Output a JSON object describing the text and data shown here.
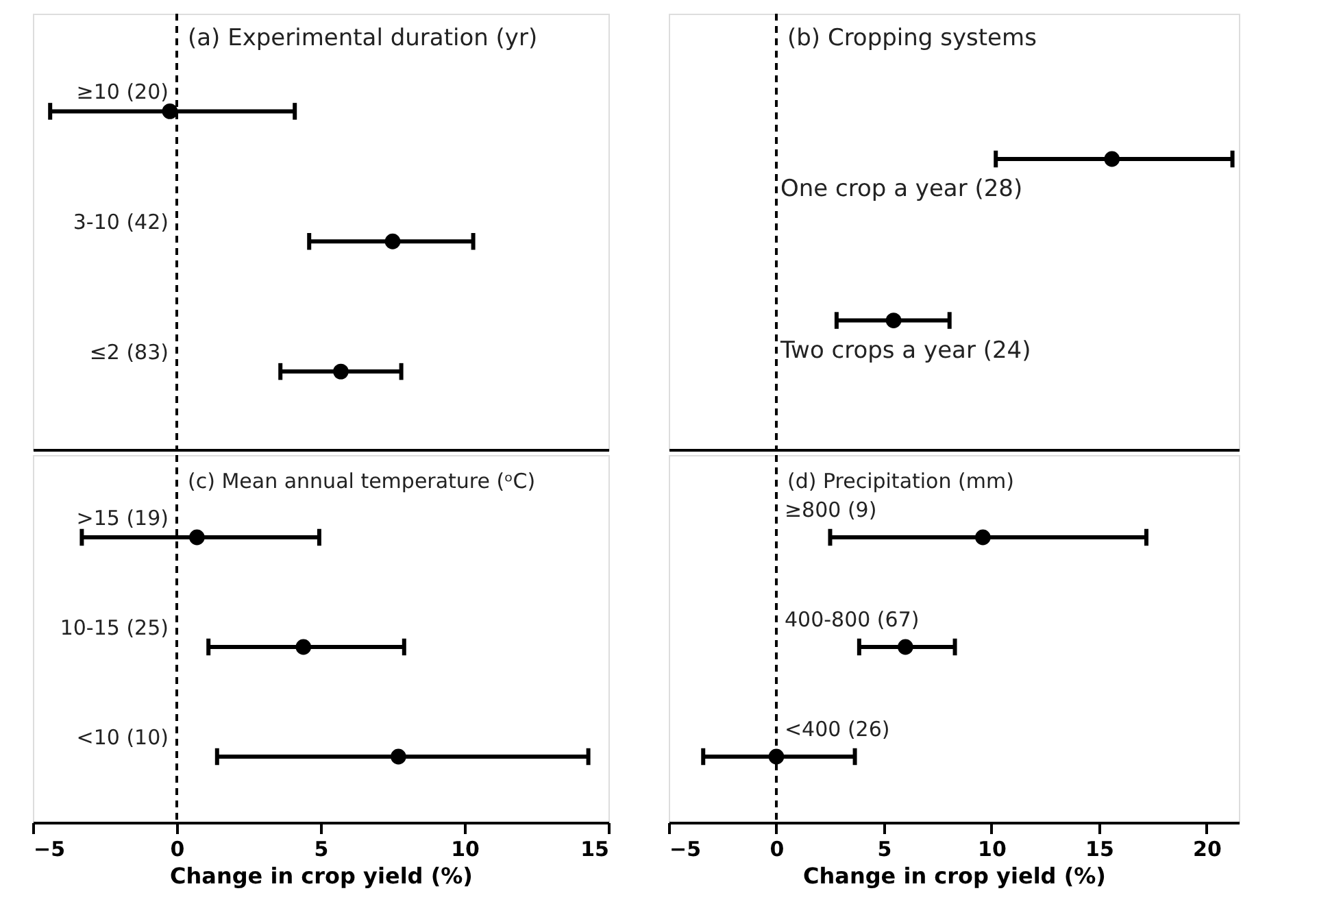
{
  "chart_data": [
    {
      "type": "scatter",
      "orientation": "horizontal",
      "title": "(a) Experimental duration (yr)",
      "categories": [
        "≥10 (20)",
        "3-10 (42)",
        "≤2 (83)"
      ],
      "values": [
        -0.24,
        7.5,
        5.7
      ],
      "errors": [
        [
          -4.4,
          4.1
        ],
        [
          4.6,
          10.3
        ],
        [
          3.6,
          7.8
        ]
      ],
      "color": "#000000",
      "marker": "circle",
      "xlim": [
        -5,
        15
      ],
      "xticks": [
        -5,
        0,
        5,
        10,
        15
      ],
      "tick_labels": false,
      "ref_lines": [
        {
          "axis": "x",
          "value": 0,
          "line_style": "dashed"
        }
      ],
      "grid": false
    },
    {
      "type": "scatter",
      "orientation": "horizontal",
      "title": "(b) Cropping systems",
      "categories": [
        "One crop a year (28)",
        "Two crops a year (24)"
      ],
      "values": [
        15.6,
        5.45
      ],
      "errors": [
        [
          10.2,
          21.2
        ],
        [
          2.8,
          8.05
        ]
      ],
      "color": "#000000",
      "marker": "circle",
      "xlim": [
        -5,
        21.5
      ],
      "xticks": [
        -5,
        0,
        5,
        10,
        15,
        20
      ],
      "tick_labels": false,
      "ref_lines": [
        {
          "axis": "x",
          "value": 0,
          "line_style": "dashed"
        }
      ],
      "grid": false
    },
    {
      "type": "scatter",
      "orientation": "horizontal",
      "title": "(c) Mean annual temperature (ᵒC)",
      "xlabel": "Change in crop yield (%)",
      "categories": [
        ">15 (19)",
        "10-15 (25)",
        "<10 (10)"
      ],
      "values": [
        0.7,
        4.4,
        7.7
      ],
      "errors": [
        [
          -3.3,
          4.95
        ],
        [
          1.1,
          7.9
        ],
        [
          1.4,
          14.3
        ]
      ],
      "color": "#000000",
      "marker": "circle",
      "xlim": [
        -5,
        15
      ],
      "xticks": [
        -5,
        0,
        5,
        10,
        15
      ],
      "tick_labels": "x",
      "ref_lines": [
        {
          "axis": "x",
          "value": 0,
          "line_style": "dashed"
        }
      ],
      "grid": false
    },
    {
      "type": "scatter",
      "orientation": "horizontal",
      "title": "(d) Precipitation (mm)",
      "xlabel": "Change in crop yield (%)",
      "categories": [
        "≥800 (9)",
        "400-800 (67)",
        "<400 (26)"
      ],
      "values": [
        9.6,
        6.0,
        0.0
      ],
      "errors": [
        [
          2.5,
          17.2
        ],
        [
          3.85,
          8.3
        ],
        [
          -3.4,
          3.65
        ]
      ],
      "color": "#000000",
      "marker": "circle",
      "xlim": [
        -5,
        21.5
      ],
      "xticks": [
        -5,
        0,
        5,
        10,
        15,
        20
      ],
      "tick_labels": "x",
      "ref_lines": [
        {
          "axis": "x",
          "value": 0,
          "line_style": "dashed"
        }
      ],
      "grid": false
    }
  ]
}
